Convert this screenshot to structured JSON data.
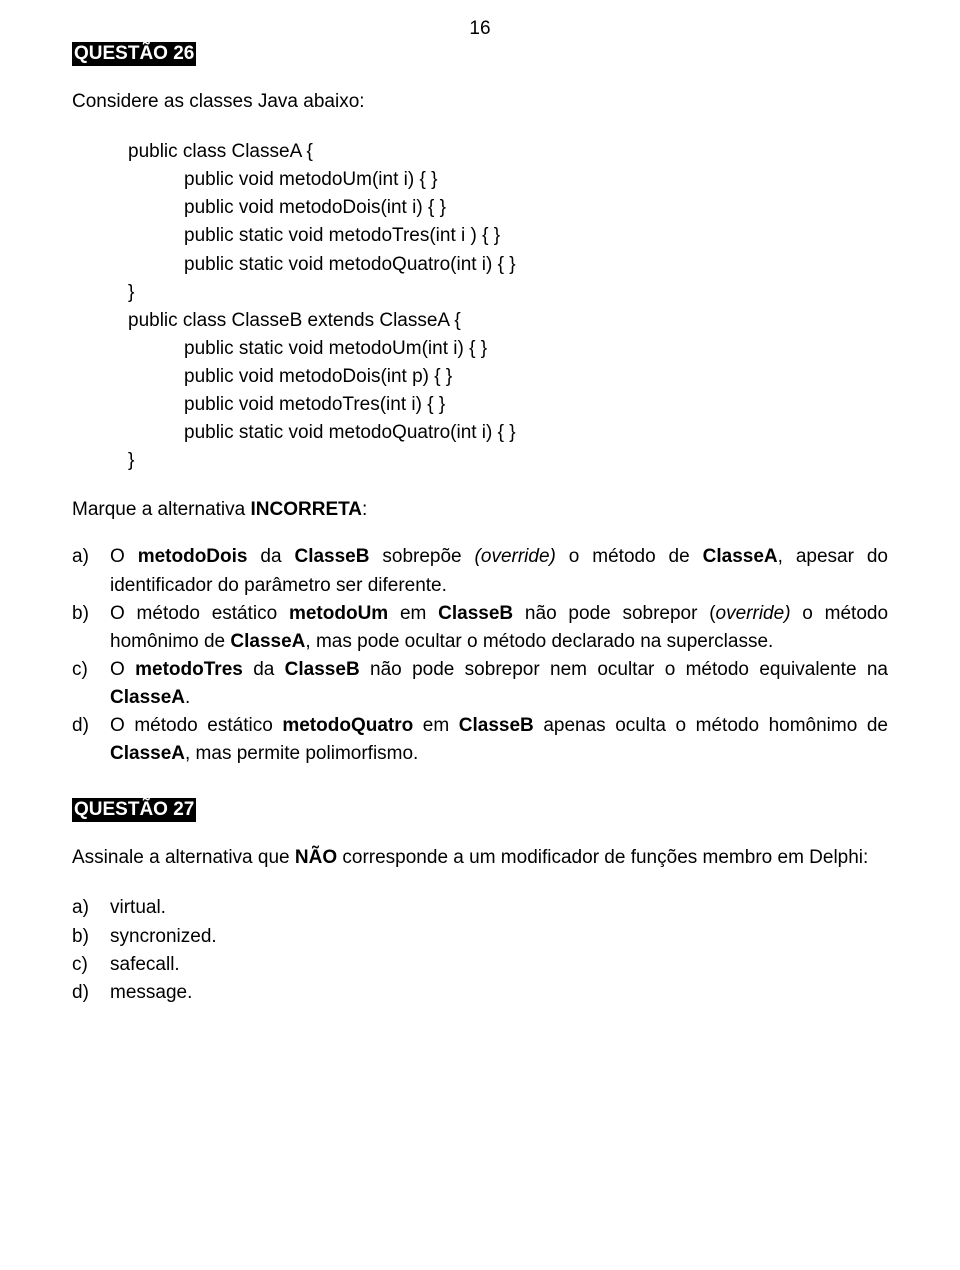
{
  "pageNumber": "16",
  "q26": {
    "badge": "QUESTÃO 26",
    "intro": "Considere as classes Java abaixo:",
    "code": [
      {
        "text": "public class ClasseA {",
        "indent": 0
      },
      {
        "text": "public void metodoUm(int i) { }",
        "indent": 1
      },
      {
        "text": "public void metodoDois(int i) { }",
        "indent": 1
      },
      {
        "text": "public static void metodoTres(int i ) { }",
        "indent": 1
      },
      {
        "text": "public static void metodoQuatro(int i) { }",
        "indent": 1
      },
      {
        "text": "}",
        "indent": 0
      },
      {
        "text": "public class ClasseB extends ClasseA {",
        "indent": 0
      },
      {
        "text": "public static void metodoUm(int i) { }",
        "indent": 1
      },
      {
        "text": "public void metodoDois(int p) { }",
        "indent": 1
      },
      {
        "text": "public void metodoTres(int i) { }",
        "indent": 1
      },
      {
        "text": "public static void metodoQuatro(int i) { }",
        "indent": 1
      },
      {
        "text": "}",
        "indent": 0
      }
    ],
    "prompt_pre": "Marque a alternativa ",
    "prompt_bold": "INCORRETA",
    "prompt_post": ":",
    "options": {
      "a": {
        "marker": "a)",
        "runs": [
          {
            "t": "O "
          },
          {
            "t": "metodoDois",
            "b": true
          },
          {
            "t": " da "
          },
          {
            "t": "ClasseB",
            "b": true
          },
          {
            "t": " sobrepõe "
          },
          {
            "t": "(override)",
            "i": true
          },
          {
            "t": " o método de "
          },
          {
            "t": "ClasseA",
            "b": true
          },
          {
            "t": ", apesar do identificador do parâmetro ser diferente."
          }
        ]
      },
      "b": {
        "marker": "b)",
        "runs": [
          {
            "t": "O método estático "
          },
          {
            "t": "metodoUm",
            "b": true
          },
          {
            "t": " em "
          },
          {
            "t": "ClasseB",
            "b": true
          },
          {
            "t": " não pode sobrepor ("
          },
          {
            "t": "override)",
            "i": true
          },
          {
            "t": " o método homônimo de "
          },
          {
            "t": "ClasseA",
            "b": true
          },
          {
            "t": ", mas pode ocultar o método declarado na superclasse."
          }
        ]
      },
      "c": {
        "marker": "c)",
        "runs": [
          {
            "t": "O "
          },
          {
            "t": "metodoTres",
            "b": true
          },
          {
            "t": " da "
          },
          {
            "t": "ClasseB",
            "b": true
          },
          {
            "t": " não pode sobrepor nem ocultar o método equivalente na "
          },
          {
            "t": "ClasseA",
            "b": true
          },
          {
            "t": "."
          }
        ]
      },
      "d": {
        "marker": "d)",
        "runs": [
          {
            "t": "O método estático "
          },
          {
            "t": "metodoQuatro",
            "b": true
          },
          {
            "t": " em "
          },
          {
            "t": "ClasseB",
            "b": true
          },
          {
            "t": " apenas oculta o método homônimo de "
          },
          {
            "t": "ClasseA",
            "b": true
          },
          {
            "t": ", mas permite polimorfismo."
          }
        ]
      }
    }
  },
  "q27": {
    "badge": "QUESTÃO 27",
    "intro_pre": "Assinale a alternativa que ",
    "intro_bold": "NÃO",
    "intro_post": " corresponde a um modificador de funções membro em Delphi:",
    "options": [
      {
        "marker": "a)",
        "text": "virtual."
      },
      {
        "marker": "b)",
        "text": "syncronized."
      },
      {
        "marker": "c)",
        "text": "safecall."
      },
      {
        "marker": "d)",
        "text": "message."
      }
    ]
  }
}
